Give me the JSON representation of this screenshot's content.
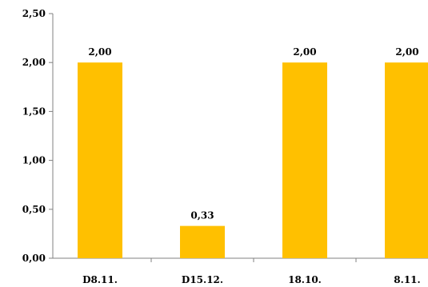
{
  "chart_data": {
    "type": "bar",
    "categories": [
      "D8.11.",
      "D15.12.",
      "18.10.",
      "8.11."
    ],
    "values": [
      2.0,
      0.33,
      2.0,
      2.0
    ],
    "value_labels": [
      "2,00",
      "0,33",
      "2,00",
      "2,00"
    ],
    "title": "",
    "xlabel": "",
    "ylabel": "",
    "ylim": [
      0,
      2.5
    ],
    "yticks": [
      0,
      0.5,
      1.0,
      1.5,
      2.0,
      2.5
    ],
    "ytick_labels": [
      "0,00",
      "0,50",
      "1,00",
      "1,50",
      "2,00",
      "2,50"
    ],
    "grid": false,
    "legend": "none",
    "bar_color": "#FFC000",
    "axis_color": "#808080"
  }
}
